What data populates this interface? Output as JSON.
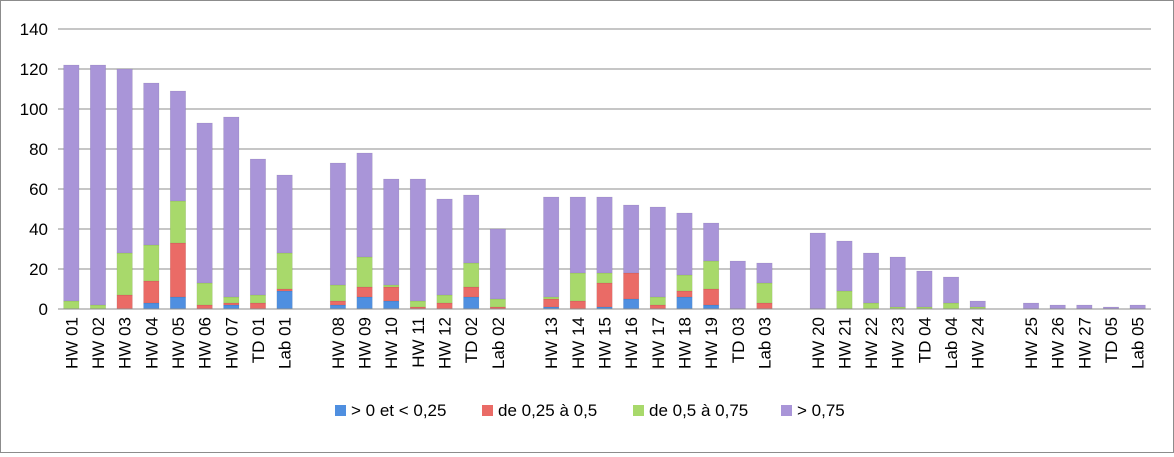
{
  "chart_data": {
    "type": "bar",
    "stacked": true,
    "title": "",
    "xlabel": "",
    "ylabel": "",
    "ylim": [
      0,
      140
    ],
    "yticks": [
      0,
      20,
      40,
      60,
      80,
      100,
      120,
      140
    ],
    "grid": true,
    "legend_position": "bottom",
    "groups": [
      [
        "HW 01",
        "HW 02",
        "HW 03",
        "HW 04",
        "HW 05",
        "HW 06",
        "HW 07",
        "TD 01",
        "Lab 01"
      ],
      [
        "HW 08",
        "HW 09",
        "HW 10",
        "HW 11",
        "HW 12",
        "TD 02",
        "Lab 02"
      ],
      [
        "HW 13",
        "HW 14",
        "HW 15",
        "HW 16",
        "HW 17",
        "HW 18",
        "HW 19",
        "TD 03",
        "Lab 03"
      ],
      [
        "HW 20",
        "HW 21",
        "HW 22",
        "HW 23",
        "TD 04",
        "Lab 04",
        "HW 24"
      ],
      [
        "HW 25",
        "HW 26",
        "HW 27",
        "TD 05",
        "Lab 05"
      ]
    ],
    "categories": [
      "HW 01",
      "HW 02",
      "HW 03",
      "HW 04",
      "HW 05",
      "HW 06",
      "HW 07",
      "TD 01",
      "Lab 01",
      "HW 08",
      "HW 09",
      "HW 10",
      "HW 11",
      "HW 12",
      "TD 02",
      "Lab 02",
      "HW 13",
      "HW 14",
      "HW 15",
      "HW 16",
      "HW 17",
      "HW 18",
      "HW 19",
      "TD 03",
      "Lab 03",
      "HW 20",
      "HW 21",
      "HW 22",
      "HW 23",
      "TD 04",
      "Lab 04",
      "HW 24",
      "HW 25",
      "HW 26",
      "HW 27",
      "TD 05",
      "Lab 05"
    ],
    "series": [
      {
        "name": "> 0 et < 0,25",
        "color": "#4f8fe0",
        "values": [
          0,
          0,
          0,
          3,
          6,
          0,
          2,
          0,
          9,
          2,
          6,
          4,
          0,
          0,
          6,
          0,
          1,
          0,
          1,
          5,
          0,
          6,
          2,
          0,
          0,
          0,
          0,
          0,
          0,
          0,
          0,
          0,
          0,
          0,
          0,
          0,
          0
        ]
      },
      {
        "name": "de 0,25 à 0,5",
        "color": "#ea6b66",
        "values": [
          0,
          0,
          7,
          11,
          27,
          2,
          1,
          3,
          1,
          2,
          5,
          7,
          1,
          3,
          5,
          1,
          4,
          4,
          12,
          13,
          2,
          3,
          8,
          0,
          3,
          0,
          0,
          0,
          0,
          0,
          0,
          0,
          0,
          0,
          0,
          0,
          0
        ]
      },
      {
        "name": "de 0,5 à 0,75",
        "color": "#a8d96b",
        "values": [
          4,
          2,
          21,
          18,
          21,
          11,
          3,
          4,
          18,
          8,
          15,
          1,
          3,
          4,
          12,
          4,
          1,
          14,
          5,
          0,
          4,
          8,
          14,
          0,
          10,
          0,
          9,
          3,
          1,
          1,
          3,
          1,
          0,
          0,
          0,
          0,
          0
        ]
      },
      {
        "name": "> 0,75",
        "color": "#a995d8",
        "values": [
          118,
          120,
          92,
          81,
          55,
          80,
          90,
          68,
          39,
          61,
          52,
          53,
          61,
          48,
          34,
          35,
          50,
          38,
          38,
          34,
          45,
          31,
          19,
          24,
          10,
          38,
          25,
          25,
          25,
          18,
          13,
          3,
          3,
          2,
          2,
          1,
          2
        ]
      }
    ]
  }
}
